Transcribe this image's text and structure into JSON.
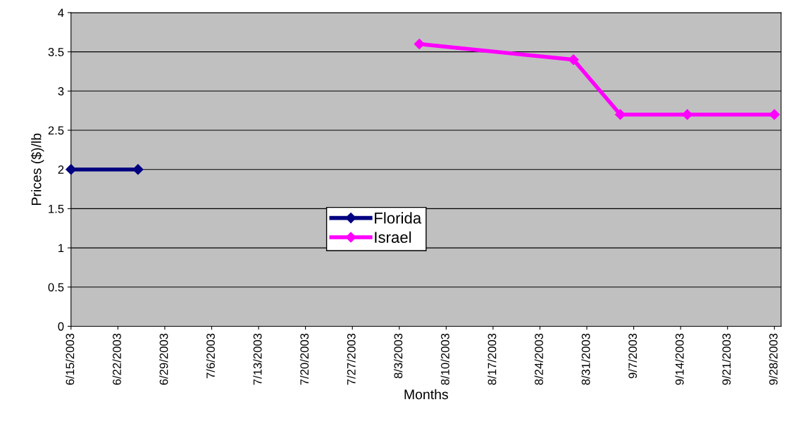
{
  "chart_data": {
    "type": "line",
    "xlabel": "Months",
    "ylabel": "Prices ($)/lb",
    "series": [
      {
        "name": "Florida",
        "color": "#000080",
        "x": [
          "2003-06-15",
          "2003-06-25"
        ],
        "values": [
          2,
          2
        ]
      },
      {
        "name": "Israel",
        "color": "#ff00ff",
        "x": [
          "2003-08-06",
          "2003-08-29",
          "2003-09-05",
          "2003-09-15",
          "2003-09-28"
        ],
        "values": [
          3.6,
          3.4,
          2.7,
          2.7,
          2.7
        ]
      }
    ],
    "xlim": [
      "2003-06-15",
      "2003-09-29"
    ],
    "xticks": [
      {
        "value": "2003-06-15",
        "label": "6/15/2003"
      },
      {
        "value": "2003-06-22",
        "label": "6/22/2003"
      },
      {
        "value": "2003-06-29",
        "label": "6/29/2003"
      },
      {
        "value": "2003-07-06",
        "label": "7/6/2003"
      },
      {
        "value": "2003-07-13",
        "label": "7/13/2003"
      },
      {
        "value": "2003-07-20",
        "label": "7/20/2003"
      },
      {
        "value": "2003-07-27",
        "label": "7/27/2003"
      },
      {
        "value": "2003-08-03",
        "label": "8/3/2003"
      },
      {
        "value": "2003-08-10",
        "label": "8/10/2003"
      },
      {
        "value": "2003-08-17",
        "label": "8/17/2003"
      },
      {
        "value": "2003-08-24",
        "label": "8/24/2003"
      },
      {
        "value": "2003-08-31",
        "label": "8/31/2003"
      },
      {
        "value": "2003-09-07",
        "label": "9/7/2003"
      },
      {
        "value": "2003-09-14",
        "label": "9/14/2003"
      },
      {
        "value": "2003-09-21",
        "label": "9/21/2003"
      },
      {
        "value": "2003-09-28",
        "label": "9/28/2003"
      }
    ],
    "ylim": [
      0,
      4
    ],
    "yticks": [
      0,
      0.5,
      1,
      1.5,
      2,
      2.5,
      3,
      3.5,
      4
    ],
    "grid": "y",
    "legend": "center",
    "marker": "diamond",
    "line_style": "solid"
  }
}
